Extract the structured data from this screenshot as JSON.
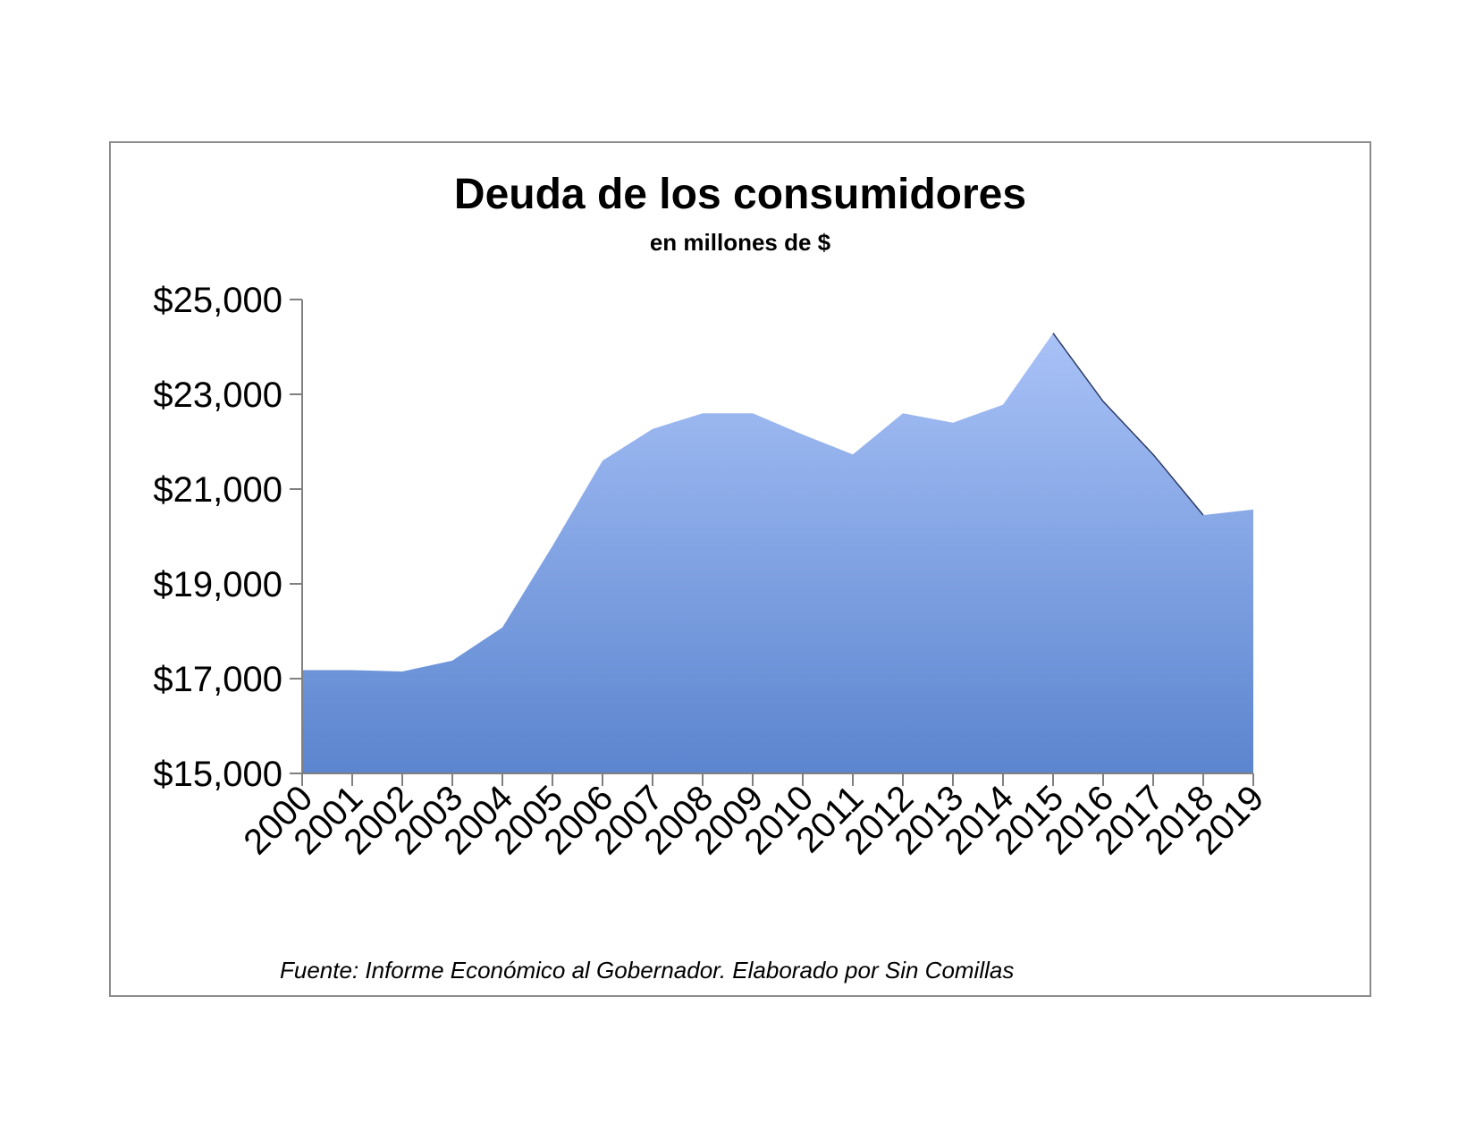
{
  "chart_data": {
    "type": "area",
    "title": "Deuda de los consumidores",
    "subtitle": "en millones de $",
    "xlabel": "",
    "ylabel": "",
    "x": [
      "2000",
      "2001",
      "2002",
      "2003",
      "2004",
      "2005",
      "2006",
      "2007",
      "2008",
      "2009",
      "2010",
      "2011",
      "2012",
      "2013",
      "2014",
      "2015",
      "2016",
      "2017",
      "2018",
      "2019"
    ],
    "values": [
      17180,
      17180,
      17150,
      17380,
      18080,
      19800,
      21600,
      22270,
      22600,
      22600,
      22150,
      21730,
      22600,
      22400,
      22780,
      24290,
      22850,
      21730,
      20450,
      20570
    ],
    "ylim": [
      15000,
      25000
    ],
    "yticks": [
      15000,
      17000,
      19000,
      21000,
      23000,
      25000
    ],
    "ytick_labels": [
      "$15,000",
      "$17,000",
      "$19,000",
      "$21,000",
      "$23,000",
      "$25,000"
    ],
    "grid": false,
    "legend": "none",
    "colors": {
      "fill_top": "#a9c2f7",
      "fill_bottom": "#5b85cf",
      "edge": "#2a3a66",
      "axis": "#808080"
    },
    "source": "Fuente: Informe Económico al Gobernador.  Elaborado por Sin Comillas"
  }
}
